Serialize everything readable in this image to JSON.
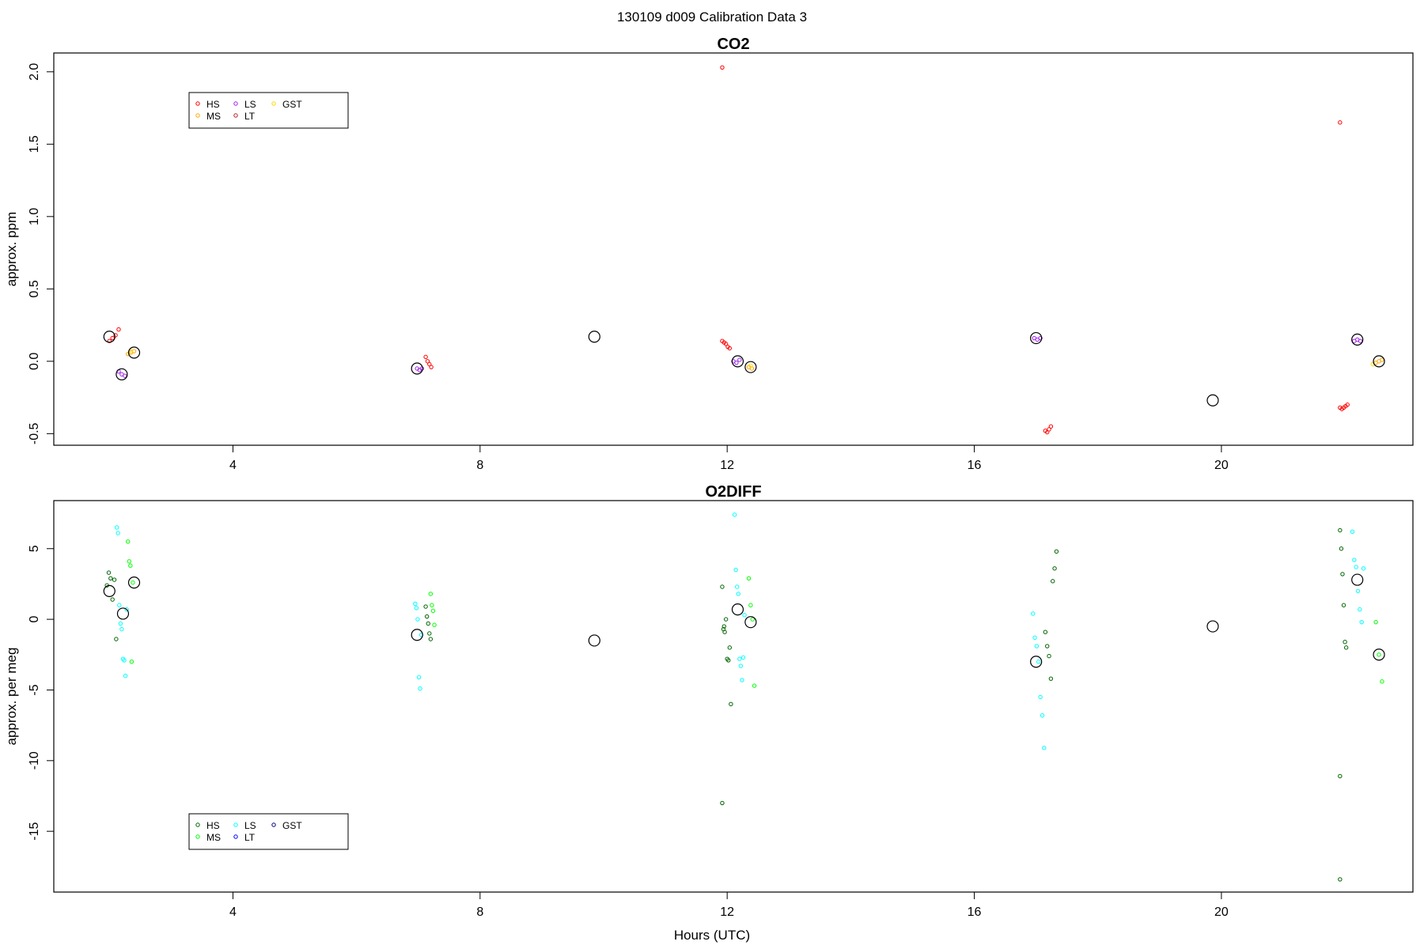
{
  "figure": {
    "title": "130109   d009   Calibration Data 3",
    "xlabel": "Hours (UTC)"
  },
  "chart_data": [
    {
      "type": "scatter",
      "title": "CO2",
      "xlabel": "",
      "ylabel": "approx. ppm",
      "xlim": [
        1.1,
        23.1
      ],
      "ylim": [
        -0.58,
        2.13
      ],
      "xticks": [
        "4",
        "8",
        "12",
        "16",
        "20"
      ],
      "yticks": [
        "-0.5",
        "0.0",
        "0.5",
        "1.0",
        "1.5",
        "2.0"
      ],
      "legend_position": "top-left",
      "legend": [
        {
          "label": "HS",
          "color": "#ff0000"
        },
        {
          "label": "MS",
          "color": "#ffa500"
        },
        {
          "label": "LS",
          "color": "#a020f0"
        },
        {
          "label": "LT",
          "color": "#b22222"
        },
        {
          "label": "GST",
          "color": "#ffd700"
        }
      ],
      "series": [
        {
          "name": "HS",
          "color": "#ff0000",
          "x": [
            2.0,
            2.05,
            2.1,
            2.15,
            7.12,
            7.15,
            7.18,
            7.21,
            11.92,
            11.95,
            11.98,
            12.01,
            12.04,
            11.92,
            17.15,
            17.18,
            17.21,
            17.24,
            21.92,
            21.95,
            21.98,
            22.01,
            22.04,
            21.92
          ],
          "y": [
            0.14,
            0.16,
            0.18,
            0.22,
            0.03,
            0.0,
            -0.02,
            -0.04,
            0.14,
            0.13,
            0.12,
            0.1,
            0.09,
            2.03,
            -0.48,
            -0.49,
            -0.47,
            -0.45,
            -0.32,
            -0.33,
            -0.32,
            -0.31,
            -0.3,
            1.65
          ]
        },
        {
          "name": "MS",
          "color": "#ffa500",
          "x": [
            2.3,
            2.35,
            2.4,
            12.35,
            12.4,
            22.5,
            22.55,
            22.6
          ],
          "y": [
            0.05,
            0.06,
            0.07,
            -0.04,
            -0.05,
            -0.01,
            0.0,
            0.01
          ]
        },
        {
          "name": "LS",
          "color": "#a020f0",
          "x": [
            2.15,
            2.2,
            2.25,
            6.98,
            7.02,
            7.06,
            12.1,
            12.15,
            12.2,
            16.97,
            17.02,
            17.07,
            22.15,
            22.2,
            22.25
          ],
          "y": [
            -0.07,
            -0.09,
            -0.1,
            -0.05,
            -0.06,
            -0.05,
            0.0,
            -0.01,
            0.01,
            0.16,
            0.15,
            0.16,
            0.14,
            0.15,
            0.14
          ]
        },
        {
          "name": "LT",
          "color": "#b22222",
          "x": [],
          "y": []
        },
        {
          "name": "GST",
          "color": "#ffd700",
          "x": [
            2.35,
            12.38,
            22.45
          ],
          "y": [
            0.07,
            -0.03,
            -0.02
          ]
        },
        {
          "name": "",
          "color": "#000000",
          "marker": "large-circle",
          "x": [
            2.0,
            2.2,
            2.4,
            6.98,
            9.85,
            12.17,
            12.38,
            17.0,
            19.86,
            22.2,
            22.55
          ],
          "y": [
            0.17,
            -0.09,
            0.06,
            -0.05,
            0.17,
            0.0,
            -0.04,
            0.16,
            -0.27,
            0.15,
            0.0
          ]
        }
      ]
    },
    {
      "type": "scatter",
      "title": "O2DIFF",
      "xlabel": "Hours (UTC)",
      "ylabel": "approx. per meg",
      "xlim": [
        1.1,
        23.1
      ],
      "ylim": [
        -19.3,
        8.4
      ],
      "xticks": [
        "4",
        "8",
        "12",
        "16",
        "20"
      ],
      "yticks": [
        "-15",
        "-10",
        "-5",
        "0",
        "5"
      ],
      "legend_position": "bottom-left",
      "legend": [
        {
          "label": "HS",
          "color": "#006400"
        },
        {
          "label": "MS",
          "color": "#00ff00"
        },
        {
          "label": "LS",
          "color": "#00ffff"
        },
        {
          "label": "LT",
          "color": "#0000ff"
        },
        {
          "label": "GST",
          "color": "#000080"
        }
      ],
      "series": [
        {
          "name": "HS",
          "color": "#006400",
          "x": [
            1.96,
            1.99,
            2.02,
            2.05,
            2.08,
            2.11,
            7.12,
            7.14,
            7.16,
            7.18,
            7.2,
            11.92,
            11.94,
            11.96,
            11.98,
            12.0,
            12.02,
            12.04,
            12.06,
            11.92,
            11.95,
            17.15,
            17.18,
            17.21,
            17.24,
            17.27,
            17.3,
            17.33,
            21.92,
            21.94,
            21.96,
            21.98,
            22.0,
            22.02,
            21.92,
            21.92
          ],
          "y": [
            2.4,
            3.3,
            2.9,
            1.4,
            2.8,
            -1.4,
            0.9,
            0.2,
            -0.3,
            -1.0,
            -1.4,
            2.3,
            -0.7,
            -0.9,
            0.0,
            -2.8,
            -2.9,
            -2.0,
            -6.0,
            -13.0,
            -0.5,
            -0.9,
            -1.9,
            -2.6,
            -4.2,
            2.7,
            3.6,
            4.8,
            6.3,
            5.0,
            3.2,
            1.0,
            -1.6,
            -2.0,
            -11.1,
            -18.4
          ]
        },
        {
          "name": "MS",
          "color": "#00ff00",
          "x": [
            2.3,
            2.32,
            2.34,
            2.36,
            2.38,
            7.2,
            7.22,
            7.24,
            7.26,
            12.35,
            12.38,
            12.41,
            12.44,
            22.5,
            22.55,
            22.6
          ],
          "y": [
            5.5,
            4.1,
            3.8,
            -3.0,
            2.6,
            1.8,
            1.0,
            0.6,
            -0.4,
            2.9,
            1.0,
            0.0,
            -4.7,
            -0.2,
            -2.5,
            -4.4
          ]
        },
        {
          "name": "LS",
          "color": "#00ffff",
          "x": [
            2.12,
            2.14,
            2.16,
            2.18,
            2.2,
            2.22,
            2.24,
            2.26,
            2.28,
            6.95,
            6.97,
            6.99,
            7.01,
            7.03,
            7.05,
            12.12,
            12.14,
            12.16,
            12.18,
            12.2,
            12.22,
            12.24,
            12.26,
            12.28,
            16.95,
            16.98,
            17.01,
            17.04,
            17.07,
            17.1,
            17.13,
            22.12,
            22.15,
            22.18,
            22.21,
            22.24,
            22.27,
            22.3
          ],
          "y": [
            6.5,
            6.1,
            1.0,
            -0.3,
            -0.7,
            -2.8,
            -2.9,
            -4.0,
            0.7,
            1.1,
            0.8,
            0.0,
            -4.1,
            -4.9,
            -1.1,
            7.4,
            3.5,
            2.3,
            1.8,
            -2.8,
            -3.3,
            -4.3,
            -2.7,
            0.3,
            0.4,
            -1.3,
            -1.9,
            -3.0,
            -5.5,
            -6.8,
            -9.1,
            6.2,
            4.2,
            3.7,
            2.0,
            0.7,
            -0.2,
            3.6
          ]
        },
        {
          "name": "LT",
          "color": "#0000ff",
          "x": [],
          "y": []
        },
        {
          "name": "GST",
          "color": "#000080",
          "x": [],
          "y": []
        },
        {
          "name": "",
          "color": "#000000",
          "marker": "large-circle",
          "x": [
            2.0,
            2.22,
            2.4,
            6.98,
            9.85,
            12.17,
            12.38,
            17.0,
            19.86,
            22.2,
            22.55
          ],
          "y": [
            2.0,
            0.4,
            2.6,
            -1.1,
            -1.5,
            0.7,
            -0.2,
            -3.0,
            -0.5,
            2.8,
            -2.5
          ]
        }
      ]
    }
  ]
}
